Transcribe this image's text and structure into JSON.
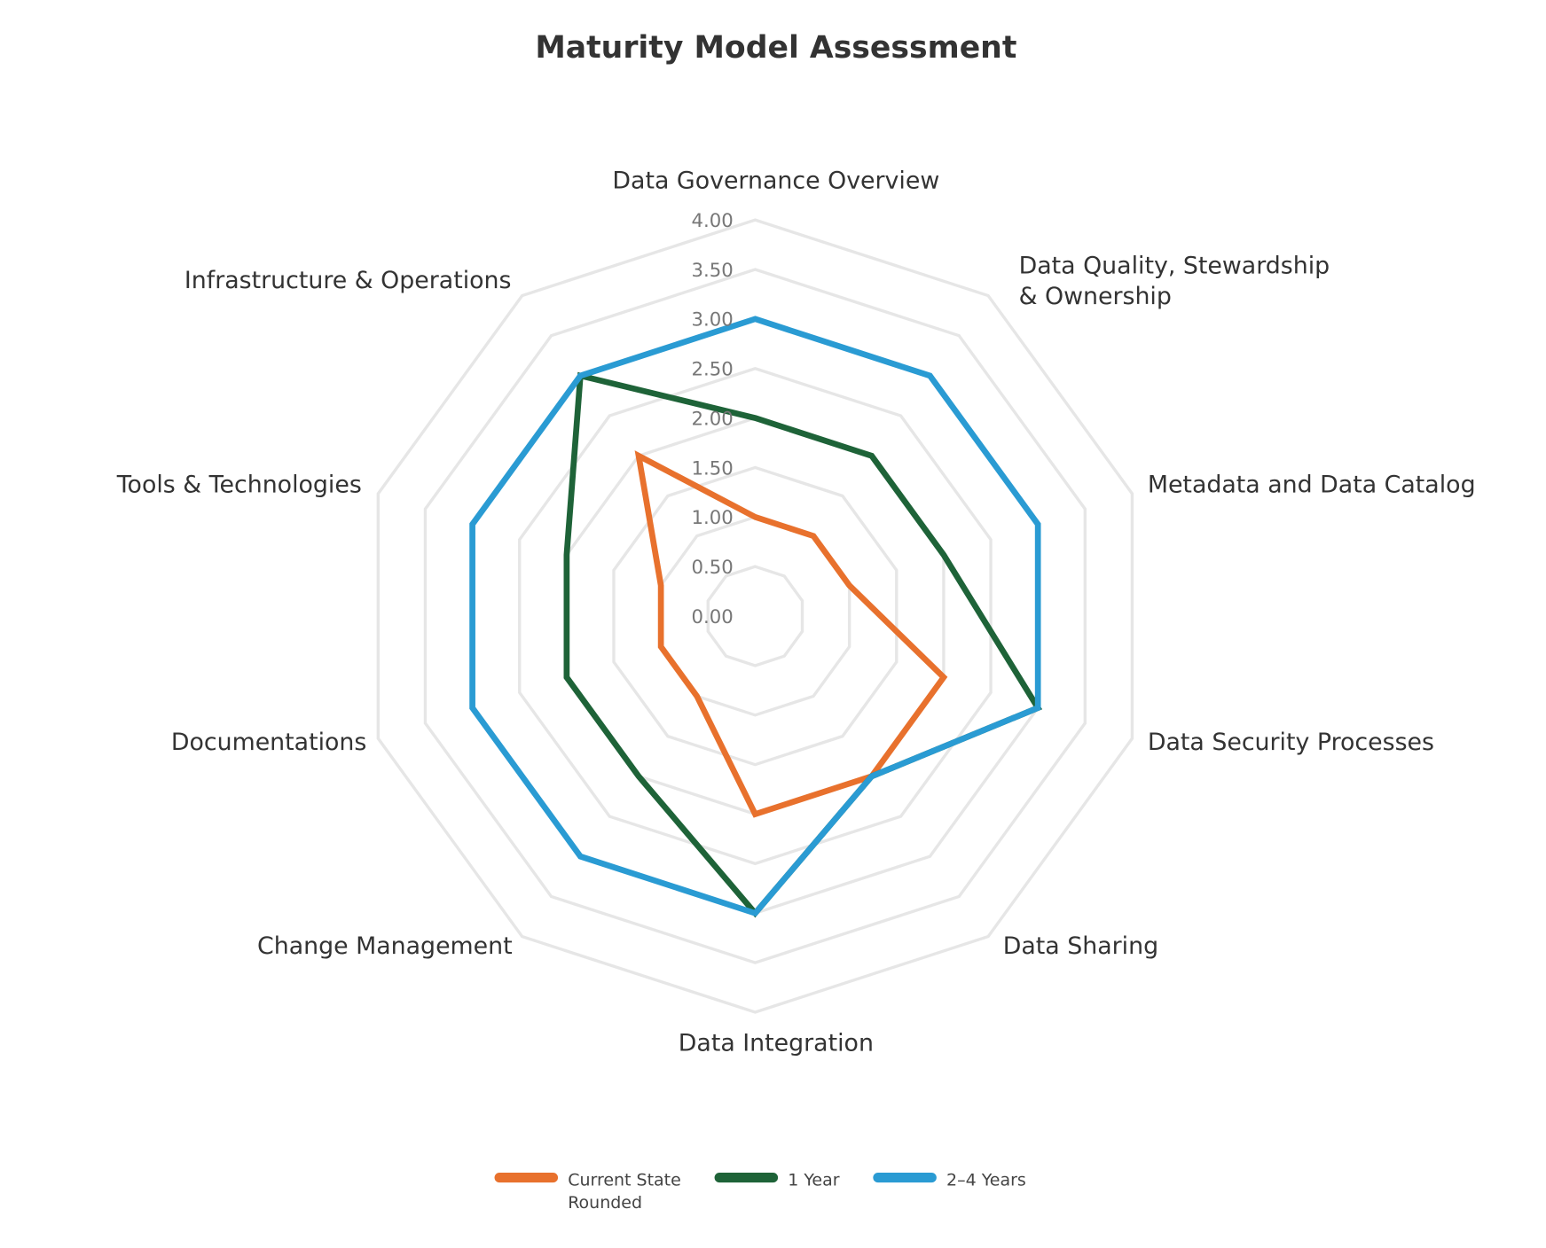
{
  "chart_data": {
    "type": "radar",
    "title": "Maturity Model Assessment",
    "categories": [
      "Data Governance Overview",
      "Data Quality, Stewardship & Ownership",
      "Metadata and Data Catalog",
      "Data Security Processes",
      "Data Sharing",
      "Data Integration",
      "Change Management",
      "Documentations",
      "Tools & Technologies",
      "Infrastructure & Operations"
    ],
    "category_lines": [
      [
        "Data Governance Overview"
      ],
      [
        "Data Quality, Stewardship",
        "& Ownership"
      ],
      [
        "Metadata and Data Catalog"
      ],
      [
        "Data Security Processes"
      ],
      [
        "Data Sharing"
      ],
      [
        "Data Integration"
      ],
      [
        "Change Management"
      ],
      [
        "Documentations"
      ],
      [
        "Tools & Technologies"
      ],
      [
        "Infrastructure & Operations"
      ]
    ],
    "rlim": [
      0,
      4
    ],
    "ticks": [
      "0.00",
      "0.50",
      "1.00",
      "1.50",
      "2.00",
      "2.50",
      "3.00",
      "3.50",
      "4.00"
    ],
    "grid": true,
    "legend_position": "bottom",
    "series": [
      {
        "name": "Current State Rounded",
        "name_lines": [
          "Current State",
          "Rounded"
        ],
        "color": "#E8712D",
        "values": [
          1,
          1,
          1,
          2,
          2,
          2,
          1,
          1,
          1,
          2
        ]
      },
      {
        "name": "1 Year",
        "name_lines": [
          "1 Year"
        ],
        "color": "#1E6338",
        "values": [
          2,
          2,
          2,
          3,
          2,
          3,
          2,
          2,
          2,
          3
        ]
      },
      {
        "name": "2–4 Years",
        "name_lines": [
          "2–4 Years"
        ],
        "color": "#2A9BD3",
        "values": [
          3,
          3,
          3,
          3,
          2,
          3,
          3,
          3,
          3,
          3
        ]
      }
    ]
  }
}
